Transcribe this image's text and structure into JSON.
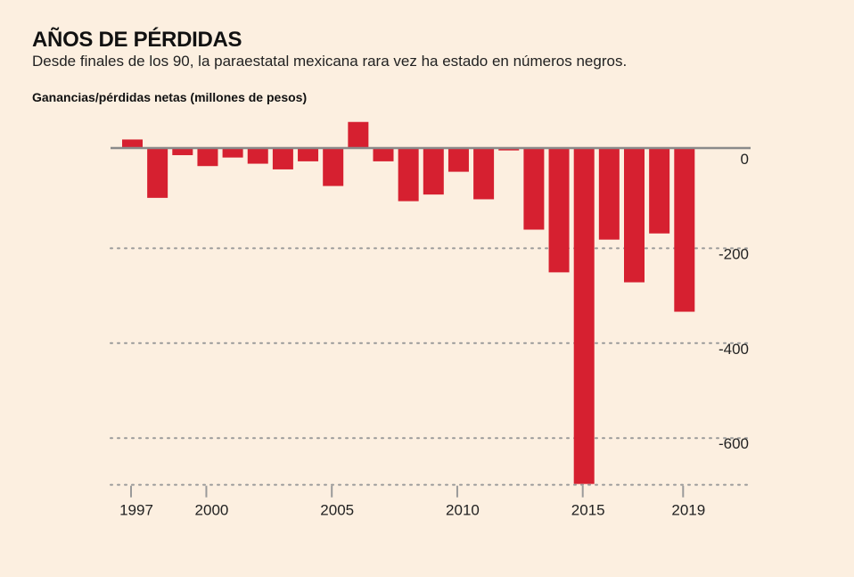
{
  "chart_data": {
    "type": "bar",
    "title": "AÑOS DE PÉRDIDAS",
    "subtitle": "Desde finales de los 90, la paraestatal mexicana rara vez ha estado en números negros.",
    "ylabel": "Ganancias/pérdidas netas (millones de pesos)",
    "xlabel": "",
    "categories": [
      "1997",
      "1998",
      "1999",
      "2000",
      "2001",
      "2002",
      "2003",
      "2004",
      "2005",
      "2006",
      "2007",
      "2008",
      "2009",
      "2010",
      "2011",
      "2012",
      "2013",
      "2014",
      "2015",
      "2016",
      "2017",
      "2018",
      "2019"
    ],
    "values": [
      18,
      -105,
      -15,
      -38,
      -20,
      -33,
      -45,
      -28,
      -80,
      55,
      -28,
      -112,
      -98,
      -50,
      -108,
      -5,
      -172,
      -262,
      -708,
      -193,
      -283,
      -180,
      -345
    ],
    "ylim": [
      -708,
      55
    ],
    "yticks": [
      0,
      -200,
      -400,
      -600
    ],
    "ytick_labels": [
      "0",
      "-200",
      "-400",
      "-600"
    ],
    "xtick_years": [
      "1997",
      "2000",
      "2005",
      "2010",
      "2015",
      "2019"
    ],
    "colors": {
      "bar": "#d62030",
      "zero_line": "#8a8a8a",
      "grid": "#9a9a9a",
      "axis": "#9a9a9a"
    },
    "grid": "dotted-horizontal",
    "legend": "none"
  }
}
